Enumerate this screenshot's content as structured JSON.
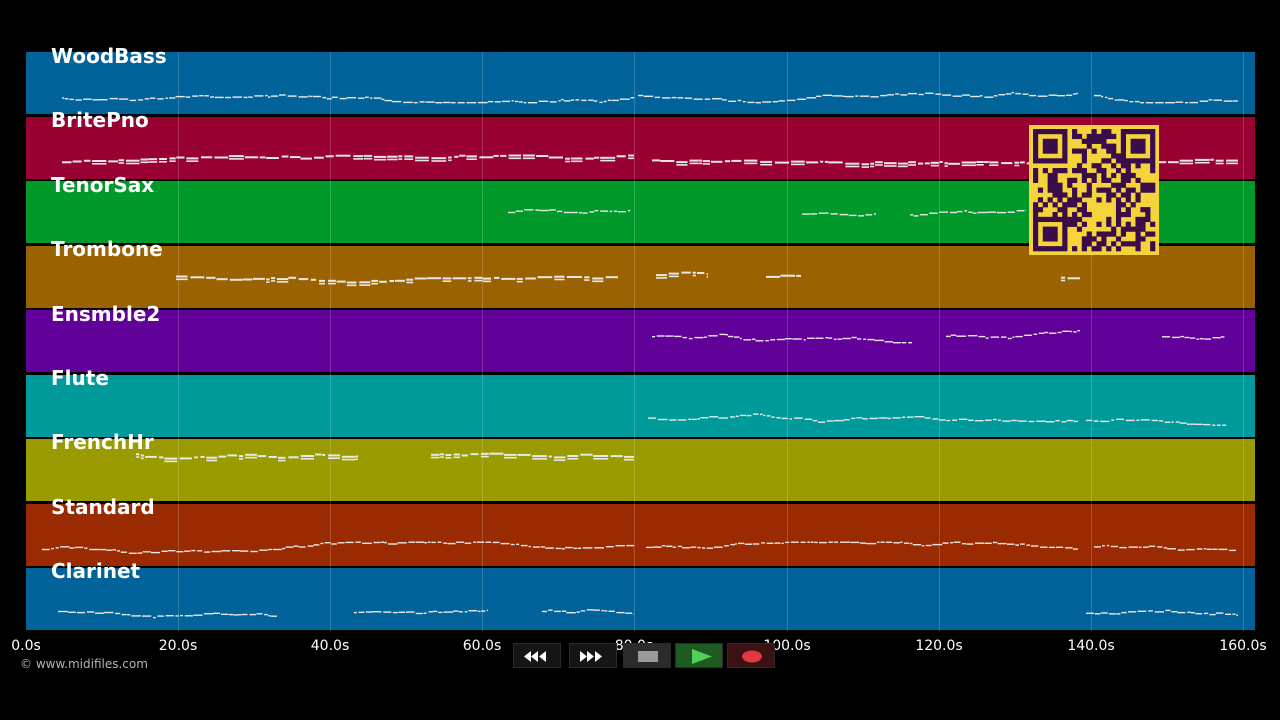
{
  "tracks": [
    {
      "name": "WoodBass",
      "color": "#01639a"
    },
    {
      "name": "BritePno",
      "color": "#9a0133"
    },
    {
      "name": "TenorSax",
      "color": "#019a2a"
    },
    {
      "name": "Trombone",
      "color": "#9a6201"
    },
    {
      "name": "Ensmble2",
      "color": "#62019a"
    },
    {
      "name": "Flute",
      "color": "#019a9a"
    },
    {
      "name": "FrenchHr",
      "color": "#9a9a01"
    },
    {
      "name": "Standard",
      "color": "#9a2a01"
    },
    {
      "name": "Clarinet",
      "color": "#01639a"
    }
  ],
  "timeline": {
    "max_seconds": 160,
    "ticks": [
      "0.0s",
      "20.0s",
      "40.0s",
      "60.0s",
      "80.0s",
      "100.0s",
      "120.0s",
      "140.0s",
      "160.0s"
    ]
  },
  "copyright": "© www.midifiles.com",
  "controls": [
    {
      "icon": "rewind-icon"
    },
    {
      "icon": "fast-forward-icon"
    },
    {
      "icon": "stop-icon"
    },
    {
      "icon": "play-icon"
    },
    {
      "icon": "record-icon"
    }
  ]
}
